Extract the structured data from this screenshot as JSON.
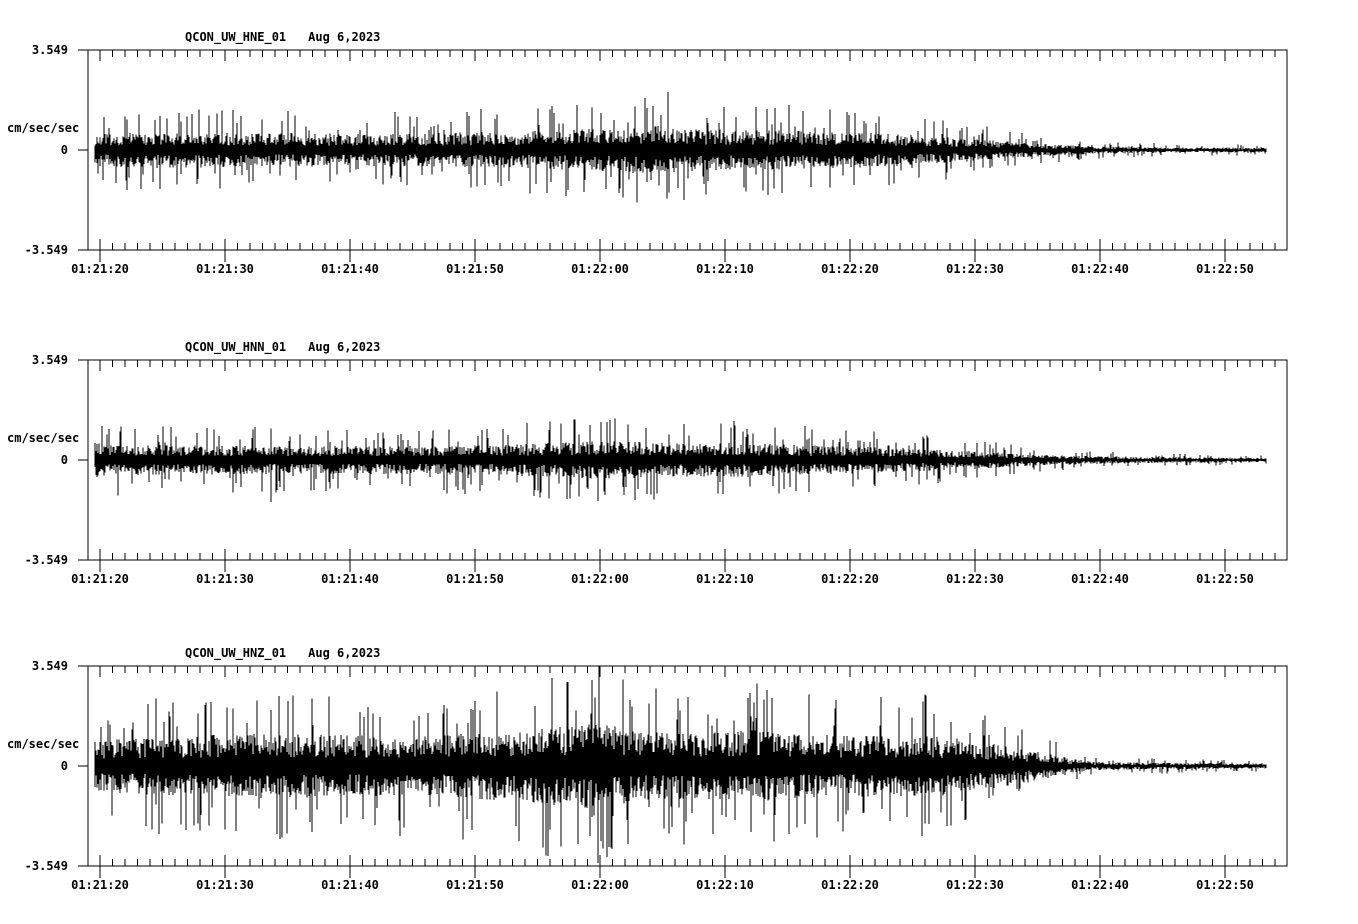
{
  "page": {
    "background_color": "#ffffff",
    "trace_color": "#000000",
    "axis_color": "#000000"
  },
  "chart_data": [
    {
      "type": "line",
      "subtype": "seismogram",
      "station": "QCON_UW_HNE_01",
      "date": "Aug 6,2023",
      "ylabel": "cm/sec/sec",
      "y_ticks": [
        "3.549",
        "0",
        "-3.549"
      ],
      "ylim": [
        -3.549,
        3.549
      ],
      "x_ticks": [
        "01:21:20",
        "01:21:30",
        "01:21:40",
        "01:21:50",
        "01:22:00",
        "01:22:10",
        "01:22:20",
        "01:22:30",
        "01:22:40",
        "01:22:50"
      ],
      "x_tick_interval_seconds": 10,
      "x_minor_tick_seconds": 1,
      "grid": false,
      "legend": false,
      "seed": 1013,
      "envelope_amp_cm_s2": [
        [
          0.0,
          1.35
        ],
        [
          0.048,
          1.49
        ],
        [
          0.133,
          1.42
        ],
        [
          0.218,
          1.35
        ],
        [
          0.303,
          1.42
        ],
        [
          0.388,
          1.6
        ],
        [
          0.447,
          1.85
        ],
        [
          0.489,
          2.06
        ],
        [
          0.515,
          1.7
        ],
        [
          0.6,
          1.6
        ],
        [
          0.642,
          1.49
        ],
        [
          0.685,
          1.35
        ],
        [
          0.727,
          1.06
        ],
        [
          0.77,
          0.78
        ],
        [
          0.812,
          0.5
        ],
        [
          0.854,
          0.32
        ],
        [
          0.897,
          0.25
        ],
        [
          1.0,
          0.18
        ]
      ],
      "notable_spikes": [
        [
          0.027,
          -1.42
        ],
        [
          0.489,
          2.06
        ],
        [
          0.52,
          -1.2
        ]
      ]
    },
    {
      "type": "line",
      "subtype": "seismogram",
      "station": "QCON_UW_HNN_01",
      "date": "Aug 6,2023",
      "ylabel": "cm/sec/sec",
      "y_ticks": [
        "3.549",
        "0",
        "-3.549"
      ],
      "ylim": [
        -3.549,
        3.549
      ],
      "x_ticks": [
        "01:21:20",
        "01:21:30",
        "01:21:40",
        "01:21:50",
        "01:22:00",
        "01:22:10",
        "01:22:20",
        "01:22:30",
        "01:22:40",
        "01:22:50"
      ],
      "x_tick_interval_seconds": 10,
      "x_minor_tick_seconds": 1,
      "grid": false,
      "legend": false,
      "seed": 2027,
      "envelope_amp_cm_s2": [
        [
          0.0,
          1.42
        ],
        [
          0.023,
          1.28
        ],
        [
          0.091,
          1.21
        ],
        [
          0.176,
          1.14
        ],
        [
          0.26,
          1.17
        ],
        [
          0.345,
          1.24
        ],
        [
          0.405,
          1.49
        ],
        [
          0.438,
          1.6
        ],
        [
          0.515,
          1.35
        ],
        [
          0.557,
          1.42
        ],
        [
          0.6,
          1.24
        ],
        [
          0.642,
          1.14
        ],
        [
          0.685,
          0.99
        ],
        [
          0.727,
          0.85
        ],
        [
          0.77,
          0.64
        ],
        [
          0.812,
          0.43
        ],
        [
          0.854,
          0.32
        ],
        [
          0.897,
          0.25
        ],
        [
          1.0,
          0.18
        ]
      ],
      "notable_spikes": [
        [
          0.15,
          -1.49
        ],
        [
          0.437,
          1.35
        ],
        [
          0.557,
          1.1
        ]
      ]
    },
    {
      "type": "line",
      "subtype": "seismogram",
      "station": "QCON_UW_HNZ_01",
      "date": "Aug 6,2023",
      "ylabel": "cm/sec/sec",
      "y_ticks": [
        "3.549",
        "0",
        "-3.549"
      ],
      "ylim": [
        -3.549,
        3.549
      ],
      "x_ticks": [
        "01:21:20",
        "01:21:30",
        "01:21:40",
        "01:21:50",
        "01:22:00",
        "01:22:10",
        "01:22:20",
        "01:22:30",
        "01:22:40",
        "01:22:50"
      ],
      "x_tick_interval_seconds": 10,
      "x_minor_tick_seconds": 1,
      "grid": false,
      "legend": false,
      "seed": 3089,
      "envelope_amp_cm_s2": [
        [
          0.0,
          2.13
        ],
        [
          0.048,
          2.41
        ],
        [
          0.133,
          2.66
        ],
        [
          0.218,
          2.56
        ],
        [
          0.286,
          2.48
        ],
        [
          0.328,
          2.77
        ],
        [
          0.383,
          3.19
        ],
        [
          0.43,
          3.549
        ],
        [
          0.472,
          2.84
        ],
        [
          0.515,
          2.77
        ],
        [
          0.566,
          3.02
        ],
        [
          0.6,
          2.66
        ],
        [
          0.642,
          2.56
        ],
        [
          0.685,
          2.48
        ],
        [
          0.71,
          2.66
        ],
        [
          0.735,
          2.31
        ],
        [
          0.761,
          1.95
        ],
        [
          0.786,
          1.6
        ],
        [
          0.812,
          1.06
        ],
        [
          0.837,
          0.57
        ],
        [
          0.854,
          0.35
        ],
        [
          0.897,
          0.28
        ],
        [
          1.0,
          0.21
        ]
      ],
      "notable_spikes": [
        [
          0.383,
          -2.9
        ],
        [
          0.43,
          3.549
        ],
        [
          0.432,
          -2.66
        ],
        [
          0.574,
          2.7
        ],
        [
          0.71,
          2.5
        ]
      ]
    }
  ]
}
